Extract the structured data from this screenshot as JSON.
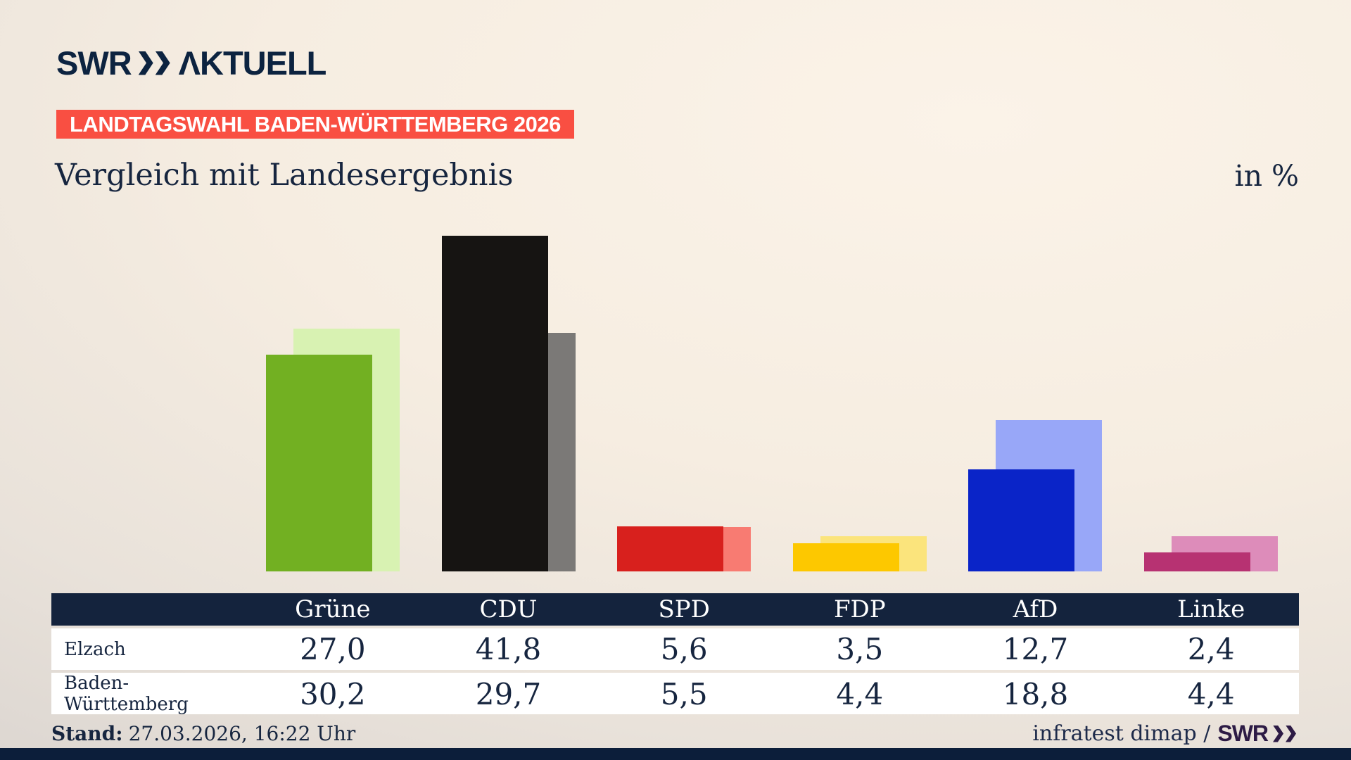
{
  "brand": {
    "logo_swr": "SWR",
    "logo_aktuell": "ΛKTUELL"
  },
  "header": {
    "badge": "LANDTAGSWAHL BADEN-WÜRTTEMBERG 2026",
    "title": "Vergleich mit Landesergebnis",
    "unit_label": "in %"
  },
  "chart_data": {
    "type": "bar",
    "title": "Vergleich mit Landesergebnis",
    "unit": "%",
    "categories": [
      "Grüne",
      "CDU",
      "SPD",
      "FDP",
      "AfD",
      "Linke"
    ],
    "series": [
      {
        "name": "Elzach",
        "values": [
          27.0,
          41.8,
          5.6,
          3.5,
          12.7,
          2.4
        ],
        "display": [
          "27,0",
          "41,8",
          "5,6",
          "3,5",
          "12,7",
          "2,4"
        ],
        "role": "foreground"
      },
      {
        "name": "Baden-Württemberg",
        "values": [
          30.2,
          29.7,
          5.5,
          4.4,
          18.8,
          4.4
        ],
        "display": [
          "30,2",
          "29,7",
          "5,5",
          "4,4",
          "18,8",
          "4,4"
        ],
        "role": "background"
      }
    ],
    "colors": {
      "foreground": [
        "#72b022",
        "#161412",
        "#d8201d",
        "#fdc800",
        "#0a24c8",
        "#b73272"
      ],
      "background": [
        "#d8f2b2",
        "#7b7977",
        "#f87b72",
        "#fbe47c",
        "#98a7f8",
        "#dd8cba"
      ]
    },
    "ylim": [
      0,
      45
    ],
    "grid": false,
    "legend_position": "table-below"
  },
  "footer": {
    "stand_label": "Stand:",
    "stand_value": "27.03.2026, 16:22 Uhr",
    "source_text": "infratest dimap /",
    "brand_text": "SWR"
  },
  "colors": {
    "navy": "#14233d",
    "badge_red": "#f94f42",
    "brand_navy": "#0c2340",
    "brand_purple": "#2d1b45",
    "background_light": "#fbf3e8",
    "background_dark": "#d2cdca",
    "row_background": "#ffffff",
    "bottom_bar": "#0c1e3a"
  }
}
